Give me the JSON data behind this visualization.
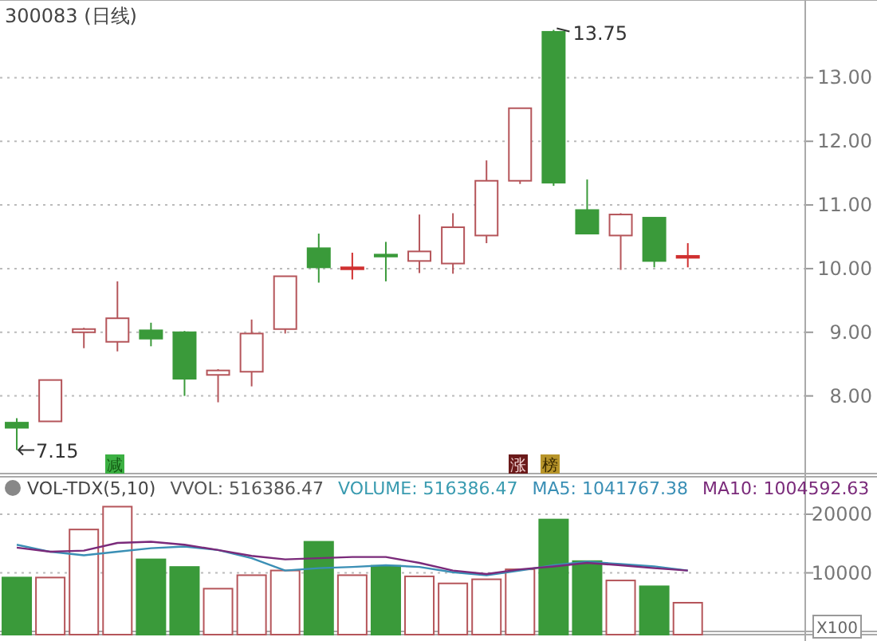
{
  "chart_data": [
    {
      "type": "candlestick",
      "title": "300083 (日线)",
      "categories": [
        null,
        null,
        null,
        null,
        null,
        null,
        null,
        null,
        null,
        null,
        null,
        null,
        null,
        null,
        null,
        null,
        null,
        null,
        null,
        null,
        null,
        null,
        null,
        null
      ],
      "ohlc": [
        [
          7.58,
          7.65,
          7.15,
          7.5
        ],
        [
          7.6,
          8.25,
          7.6,
          8.25
        ],
        [
          9.0,
          9.07,
          8.75,
          9.05
        ],
        [
          8.85,
          9.8,
          8.7,
          9.22
        ],
        [
          9.03,
          9.15,
          8.78,
          8.9
        ],
        [
          9.0,
          9.02,
          8.0,
          8.27
        ],
        [
          8.33,
          8.42,
          7.9,
          8.4
        ],
        [
          8.38,
          9.2,
          8.15,
          8.98
        ],
        [
          9.05,
          9.88,
          8.98,
          9.88
        ],
        [
          10.32,
          10.55,
          9.78,
          10.02
        ],
        [
          10.02,
          10.25,
          9.83,
          10.02
        ],
        [
          10.22,
          10.42,
          9.8,
          10.2
        ],
        [
          10.12,
          10.85,
          9.93,
          10.27
        ],
        [
          10.08,
          10.87,
          9.92,
          10.65
        ],
        [
          10.52,
          11.7,
          10.4,
          11.38
        ],
        [
          11.38,
          12.52,
          11.33,
          12.52
        ],
        [
          13.72,
          13.75,
          11.3,
          11.35
        ],
        [
          10.92,
          11.4,
          10.55,
          10.55
        ],
        [
          10.52,
          10.87,
          9.98,
          10.85
        ],
        [
          10.8,
          10.8,
          10.02,
          10.12
        ],
        [
          10.2,
          10.4,
          10.02,
          10.2
        ],
        null,
        null,
        null
      ],
      "colors": [
        "#3a9a3a",
        "#b5555a",
        "#b5555a",
        "#b5555a",
        "#3a9a3a",
        "#3a9a3a",
        "#b5555a",
        "#b5555a",
        "#b5555a",
        "#3a9a3a",
        "#d03030",
        "#3a9a3a",
        "#b5555a",
        "#b5555a",
        "#b5555a",
        "#b5555a",
        "#3a9a3a",
        "#3a9a3a",
        "#b5555a",
        "#3a9a3a",
        "#d03030",
        null,
        null,
        null
      ],
      "ylim": [
        6.78,
        14.22
      ],
      "yticks": [
        {
          "value": 8,
          "label": "8.00"
        },
        {
          "value": 9,
          "label": "9.00"
        },
        {
          "value": 10,
          "label": "10.00"
        },
        {
          "value": 11,
          "label": "11.00"
        },
        {
          "value": 12,
          "label": "12.00"
        },
        {
          "value": 13,
          "label": "13.00"
        }
      ],
      "grid": "y",
      "tick_labels": "y",
      "annotations": [
        "13.75",
        "7.15",
        "减",
        "涨",
        "榜"
      ]
    },
    {
      "type": "bar",
      "categories": [
        null,
        null,
        null,
        null,
        null,
        null,
        null,
        null,
        null,
        null,
        null,
        null,
        null,
        null,
        null,
        null,
        null,
        null,
        null,
        null,
        null,
        null,
        null,
        null
      ],
      "values": [
        9200,
        9200,
        17400,
        21300,
        12300,
        11000,
        7300,
        9600,
        10400,
        15300,
        9600,
        11200,
        9400,
        8200,
        8900,
        10600,
        19100,
        12000,
        8700,
        7700,
        4900,
        null,
        null,
        null
      ],
      "colors": [
        "#3a9a3a",
        "#b5555a",
        "#b5555a",
        "#b5555a",
        "#3a9a3a",
        "#3a9a3a",
        "#b5555a",
        "#b5555a",
        "#b5555a",
        "#3a9a3a",
        "#b5555a",
        "#3a9a3a",
        "#b5555a",
        "#b5555a",
        "#b5555a",
        "#b5555a",
        "#3a9a3a",
        "#3a9a3a",
        "#b5555a",
        "#3a9a3a",
        "#b5555a",
        null,
        null,
        null
      ],
      "series": [
        {
          "name": "MA5: 1041767.38",
          "type": "line",
          "color": "#3a8fb5",
          "values": [
            14800,
            13600,
            13000,
            13600,
            14200,
            14500,
            13900,
            12500,
            10400,
            10800,
            11000,
            11300,
            11000,
            10100,
            9600,
            10400,
            11300,
            11900,
            11500,
            11100,
            10400,
            null,
            null,
            null
          ]
        },
        {
          "name": "MA10: 1004592.63",
          "type": "line",
          "color": "#7a2a7a",
          "values": [
            14300,
            13600,
            13800,
            15100,
            15300,
            14800,
            13900,
            12900,
            12300,
            12500,
            12700,
            12700,
            11700,
            10400,
            9800,
            10600,
            11100,
            11700,
            11300,
            10800,
            10400,
            null,
            null,
            null
          ]
        }
      ],
      "ylim": [
        0,
        26400
      ],
      "yticks": [
        10000,
        20000
      ],
      "grid": "y",
      "tick_labels": "y",
      "legend": "top right",
      "annotations": [
        "VOL-TDX(5,10)",
        "VVOL: 516386.47",
        "VOLUME: 516386.47",
        "X100"
      ]
    }
  ]
}
